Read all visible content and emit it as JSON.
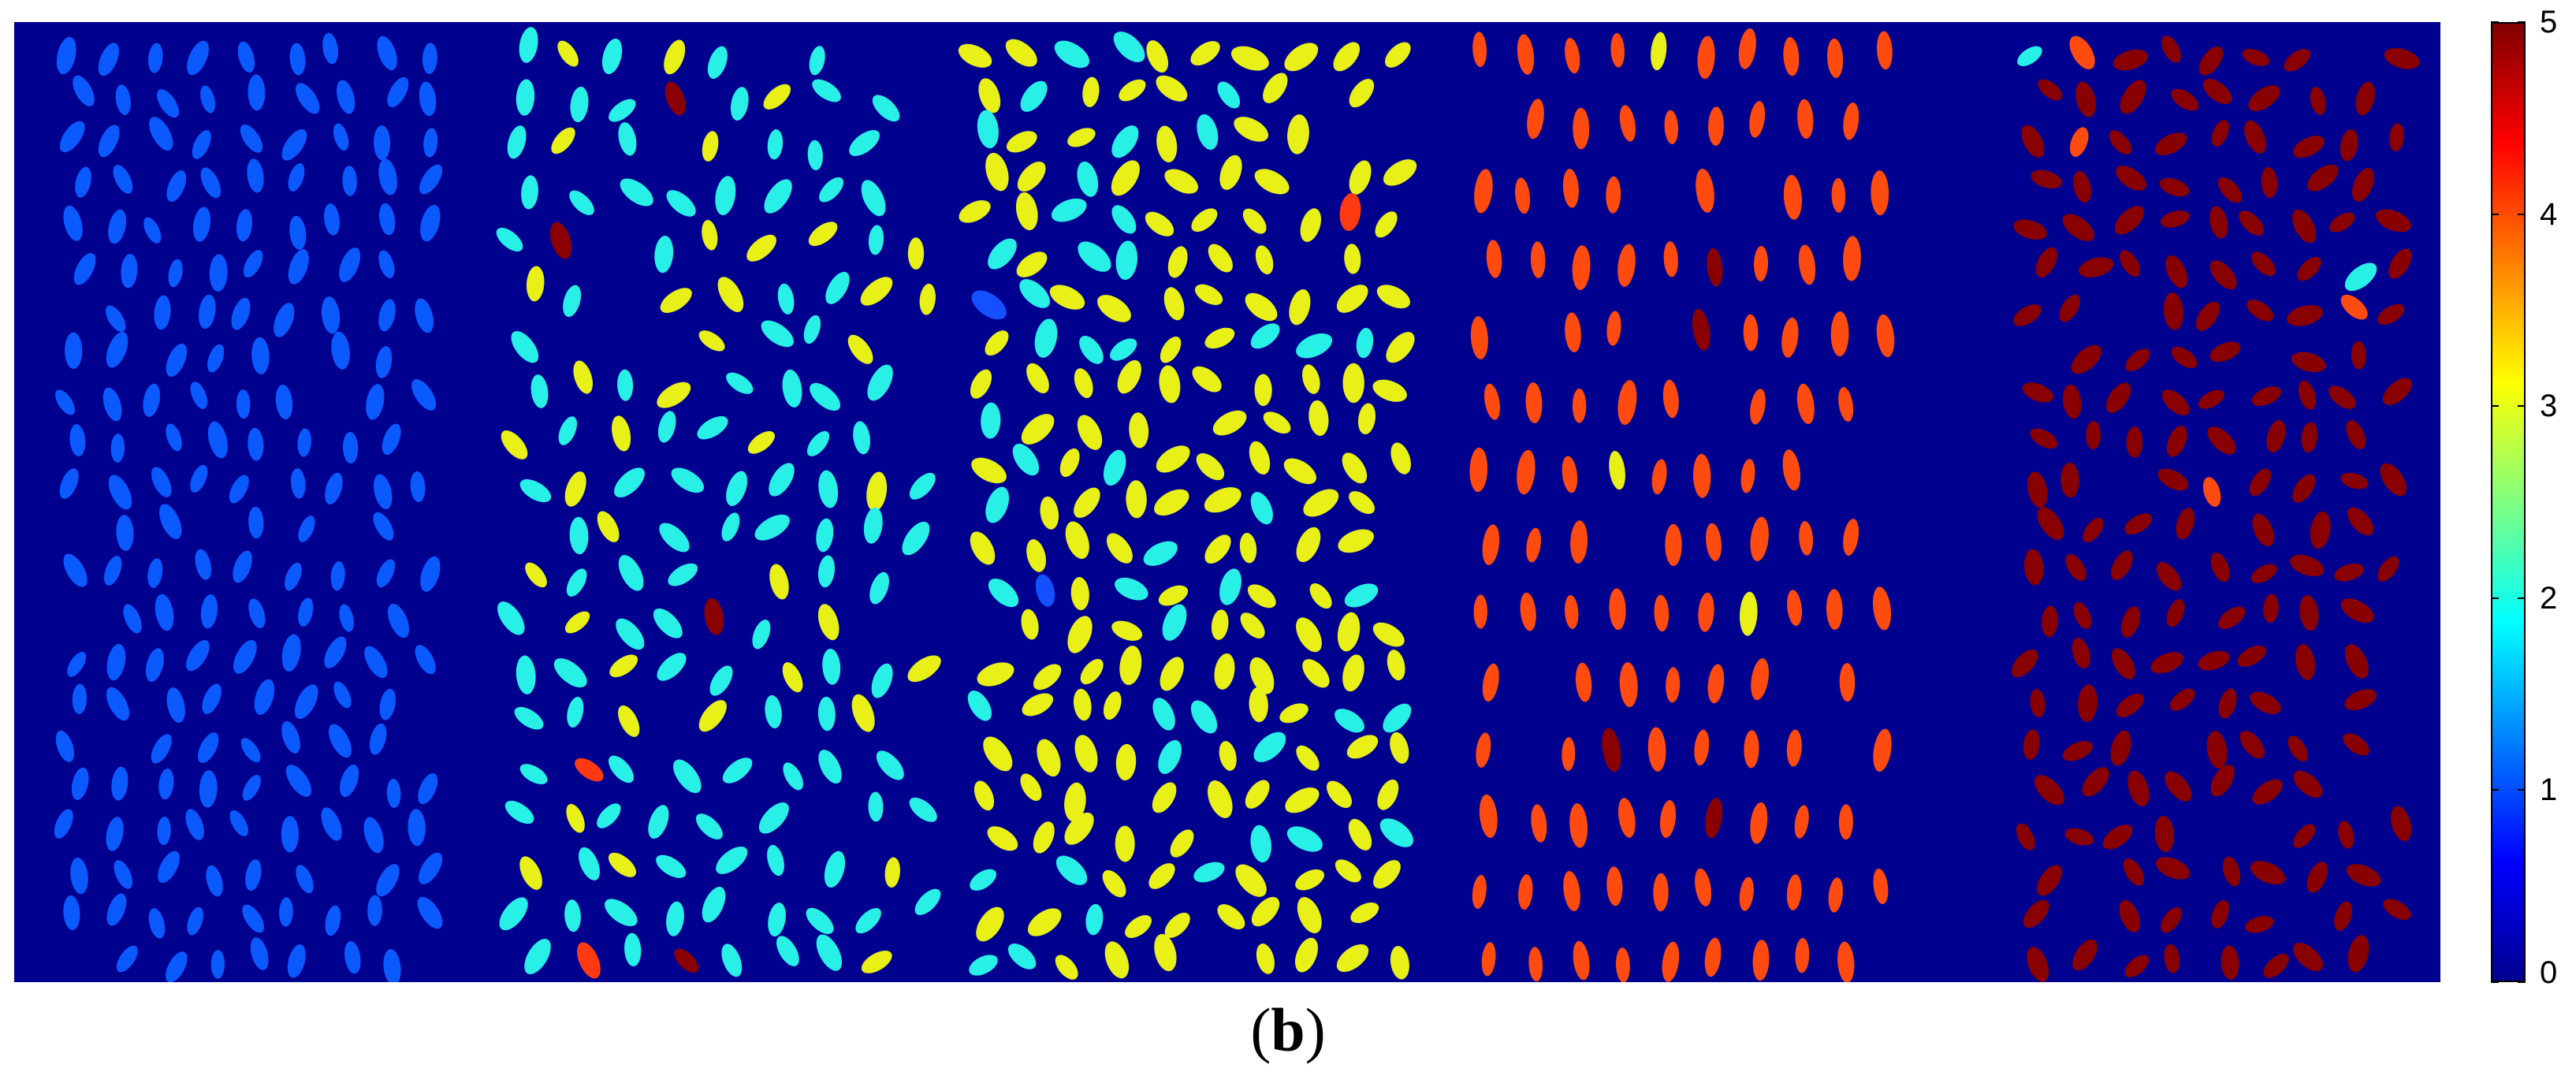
{
  "caption": {
    "open": "(",
    "letter": "b",
    "close": ")"
  },
  "colorbar": {
    "min": 0,
    "max": 5,
    "ticks": [
      "0",
      "1",
      "2",
      "3",
      "4",
      "5"
    ],
    "colors": [
      "#00008f",
      "#0000ff",
      "#0080ff",
      "#00ffff",
      "#80ff80",
      "#ffff00",
      "#ff8000",
      "#ff0000",
      "#800000"
    ]
  },
  "map": {
    "background": "#00008f",
    "panels": [
      {
        "name": "panel-1",
        "dominant_color": "#0a5aff",
        "dominant_value": 1,
        "minority": []
      },
      {
        "name": "panel-2",
        "dominant_color": "#28f0e6",
        "dominant_value": 2,
        "secondary_color": "#e8f018",
        "secondary_share": 0.3,
        "minority": [
          {
            "color": "#ff3a10"
          },
          {
            "color": "#8a0000"
          }
        ]
      },
      {
        "name": "panel-3",
        "dominant_color": "#e8f018",
        "dominant_value": 3,
        "secondary_color": "#28f0e6",
        "secondary_share": 0.22,
        "minority": [
          {
            "color": "#1450ff"
          },
          {
            "color": "#ff3a10"
          }
        ]
      },
      {
        "name": "panel-4",
        "dominant_color": "#ff4a10",
        "dominant_value": 4,
        "minority": [
          {
            "color": "#8a0000"
          },
          {
            "color": "#e8f018"
          }
        ]
      },
      {
        "name": "panel-5",
        "dominant_color": "#880000",
        "dominant_value": 5,
        "minority": [
          {
            "color": "#28f0e6"
          },
          {
            "color": "#ff4a10"
          }
        ]
      }
    ]
  }
}
